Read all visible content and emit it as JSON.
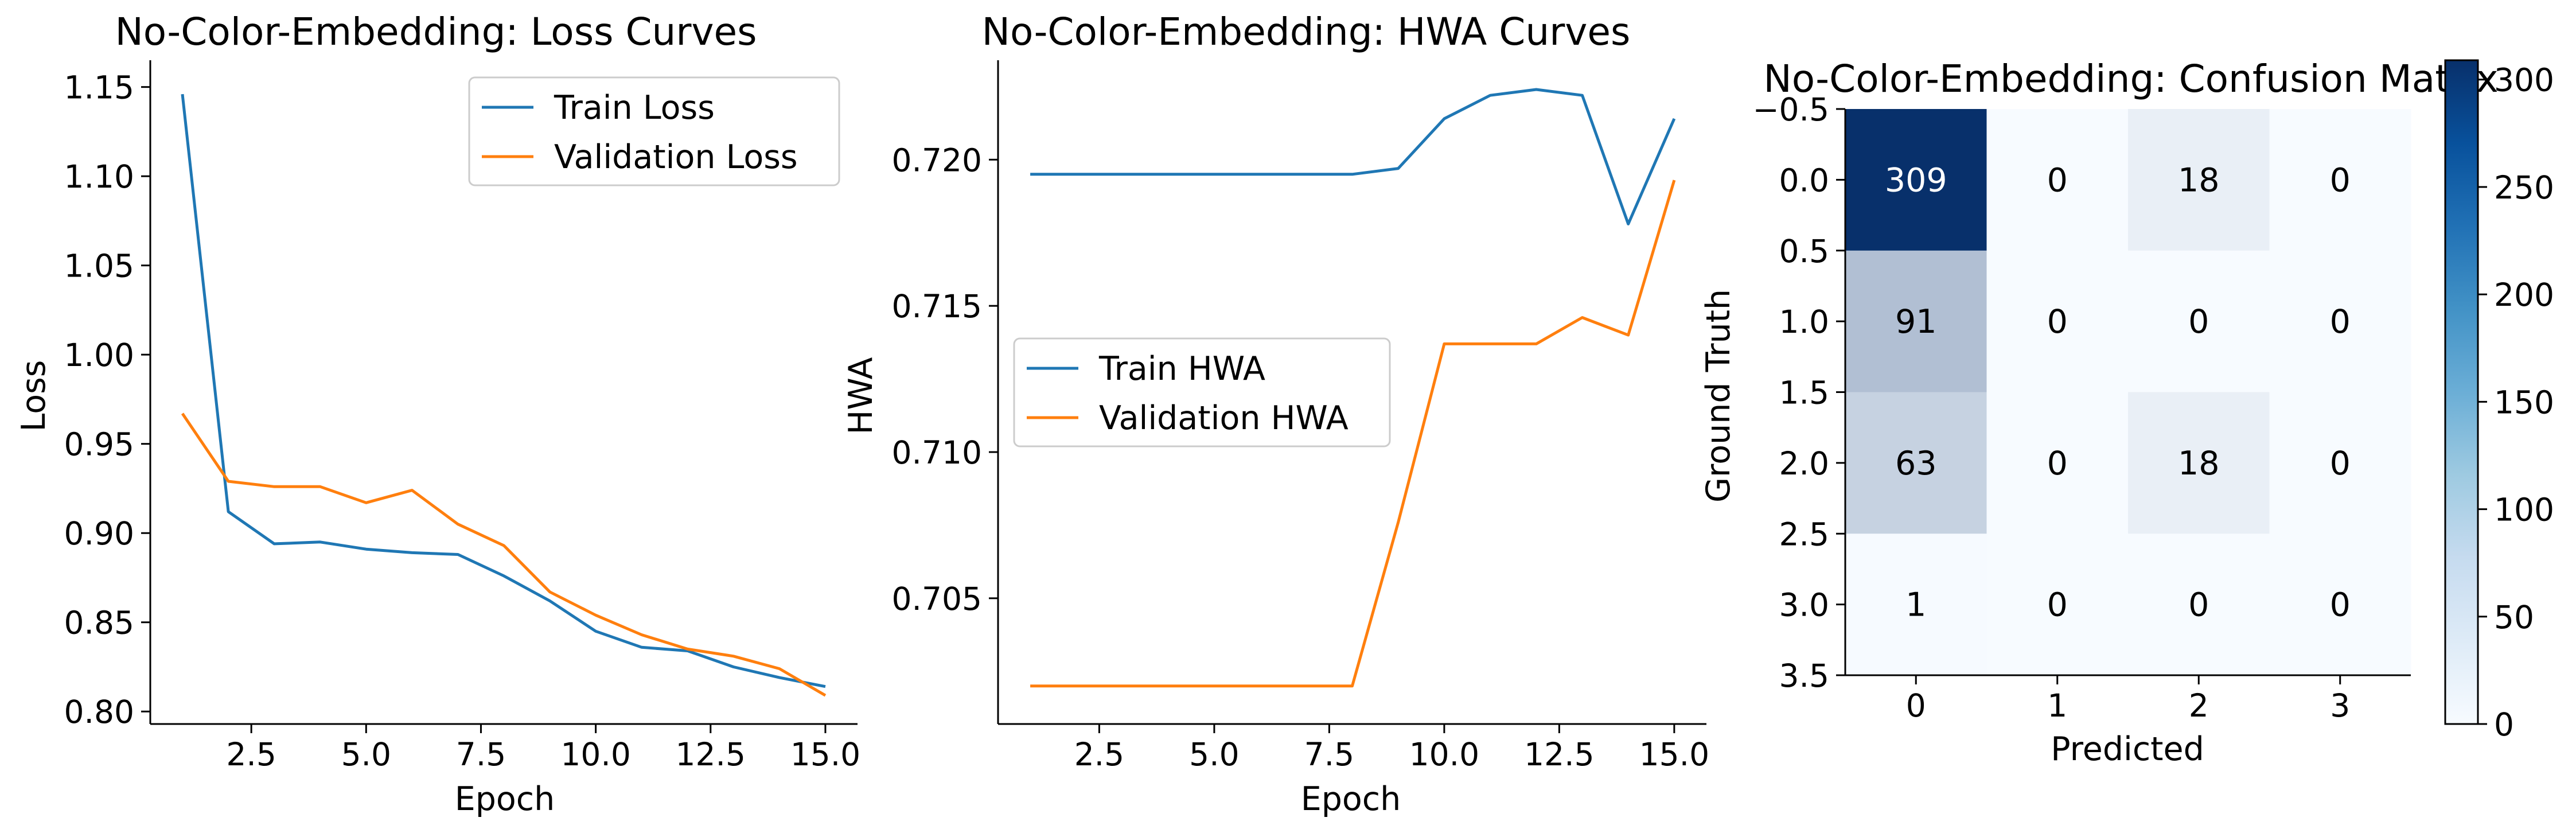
{
  "chart_data": [
    {
      "type": "line",
      "title": "No-Color-Embedding: Loss Curves",
      "xlabel": "Epoch",
      "ylabel": "Loss",
      "xlim": [
        0.3,
        15.7
      ],
      "ylim": [
        0.793,
        1.165
      ],
      "x_ticks": [
        2.5,
        5.0,
        7.5,
        10.0,
        12.5,
        15.0
      ],
      "y_ticks": [
        0.8,
        0.85,
        0.9,
        0.95,
        1.0,
        1.05,
        1.1,
        1.15
      ],
      "x_tick_labels": [
        "2.5",
        "5.0",
        "7.5",
        "10.0",
        "12.5",
        "15.0"
      ],
      "y_tick_labels": [
        "0.80",
        "0.85",
        "0.90",
        "0.95",
        "1.00",
        "1.05",
        "1.10",
        "1.15"
      ],
      "legend": "upper right",
      "grid": false,
      "x": [
        1,
        2,
        3,
        4,
        5,
        6,
        7,
        8,
        9,
        10,
        11,
        12,
        13,
        14,
        15
      ],
      "series": [
        {
          "name": "Train Loss",
          "color": "#1f77b4",
          "values": [
            1.146,
            0.912,
            0.894,
            0.895,
            0.891,
            0.889,
            0.888,
            0.876,
            0.862,
            0.845,
            0.836,
            0.834,
            0.825,
            0.819,
            0.814
          ]
        },
        {
          "name": "Validation Loss",
          "color": "#ff7f0e",
          "values": [
            0.967,
            0.929,
            0.926,
            0.926,
            0.917,
            0.924,
            0.905,
            0.893,
            0.867,
            0.854,
            0.843,
            0.835,
            0.831,
            0.824,
            0.809
          ]
        }
      ]
    },
    {
      "type": "line",
      "title": "No-Color-Embedding: HWA Curves",
      "xlabel": "Epoch",
      "ylabel": "HWA",
      "xlim": [
        0.3,
        15.7
      ],
      "ylim": [
        0.7007,
        0.7234
      ],
      "x_ticks": [
        2.5,
        5.0,
        7.5,
        10.0,
        12.5,
        15.0
      ],
      "y_ticks": [
        0.705,
        0.71,
        0.715,
        0.72
      ],
      "x_tick_labels": [
        "2.5",
        "5.0",
        "7.5",
        "10.0",
        "12.5",
        "15.0"
      ],
      "y_tick_labels": [
        "0.705",
        "0.710",
        "0.715",
        "0.720"
      ],
      "legend": "center left",
      "grid": false,
      "x": [
        1,
        2,
        3,
        4,
        5,
        6,
        7,
        8,
        9,
        10,
        11,
        12,
        13,
        14,
        15
      ],
      "series": [
        {
          "name": "Train HWA",
          "color": "#1f77b4",
          "values": [
            0.7195,
            0.7195,
            0.7195,
            0.7195,
            0.7195,
            0.7195,
            0.7195,
            0.7195,
            0.7197,
            0.7214,
            0.7222,
            0.7224,
            0.7222,
            0.7178,
            0.7214
          ]
        },
        {
          "name": "Validation HWA",
          "color": "#ff7f0e",
          "values": [
            0.702,
            0.702,
            0.702,
            0.702,
            0.702,
            0.702,
            0.702,
            0.702,
            0.7076,
            0.7137,
            0.7137,
            0.7137,
            0.7146,
            0.714,
            0.7193
          ]
        }
      ]
    },
    {
      "type": "heatmap",
      "title": "No-Color-Embedding: Confusion Matrix",
      "xlabel": "Predicted",
      "ylabel": "Ground Truth",
      "colormap": "Blues",
      "vmin": 0,
      "vmax": 309,
      "x_tick_labels": [
        "0",
        "1",
        "2",
        "3"
      ],
      "y_ticks": [
        -0.5,
        0.0,
        0.5,
        1.0,
        1.5,
        2.0,
        2.5,
        3.0,
        3.5
      ],
      "y_tick_labels": [
        "−0.5",
        "0.0",
        "0.5",
        "1.0",
        "1.5",
        "2.0",
        "2.5",
        "3.0",
        "3.5"
      ],
      "matrix": [
        [
          309,
          0,
          18,
          0
        ],
        [
          91,
          0,
          0,
          0
        ],
        [
          63,
          0,
          18,
          0
        ],
        [
          1,
          0,
          0,
          0
        ]
      ],
      "colorbar_ticks": [
        0,
        50,
        100,
        150,
        200,
        250,
        300
      ],
      "colorbar_tick_labels": [
        "0",
        "50",
        "100",
        "150",
        "200",
        "250",
        "300"
      ]
    }
  ]
}
